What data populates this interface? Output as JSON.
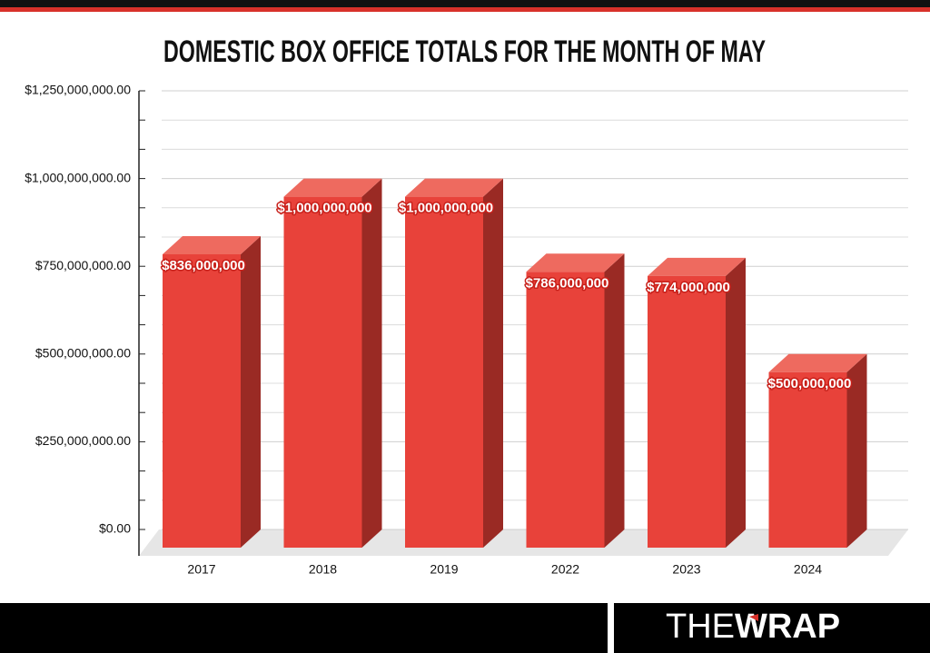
{
  "chart_data": {
    "type": "bar3d",
    "title": "DOMESTIC BOX OFFICE TOTALS FOR THE MONTH OF MAY",
    "categories": [
      "2017",
      "2018",
      "2019",
      "2022",
      "2023",
      "2024"
    ],
    "values": [
      836000000,
      1000000000,
      1000000000,
      786000000,
      774000000,
      500000000
    ],
    "value_labels": [
      "$836,000,000",
      "$1,000,000,000",
      "$1,000,000,000",
      "$786,000,000",
      "$774,000,000",
      "$500,000,000"
    ],
    "color": "#e8423a",
    "ylim": [
      0,
      1250000000
    ],
    "yticks": [
      {
        "value": 0,
        "label": "$0.00"
      },
      {
        "value": 250000000,
        "label": "$250,000,000.00"
      },
      {
        "value": 500000000,
        "label": "$500,000,000.00"
      },
      {
        "value": 750000000,
        "label": "$750,000,000.00"
      },
      {
        "value": 1000000000,
        "label": "$1,000,000,000.00"
      },
      {
        "value": 1250000000,
        "label": "$1,250,000,000.00"
      }
    ],
    "minor_yticks": [
      83333333,
      166666667,
      333333333,
      416666667,
      583333333,
      666666667,
      833333333,
      916666667,
      1083333333,
      1166666667
    ],
    "grid": true
  },
  "footer": {
    "logo_light": "THE",
    "logo_bold": "WRAP"
  }
}
